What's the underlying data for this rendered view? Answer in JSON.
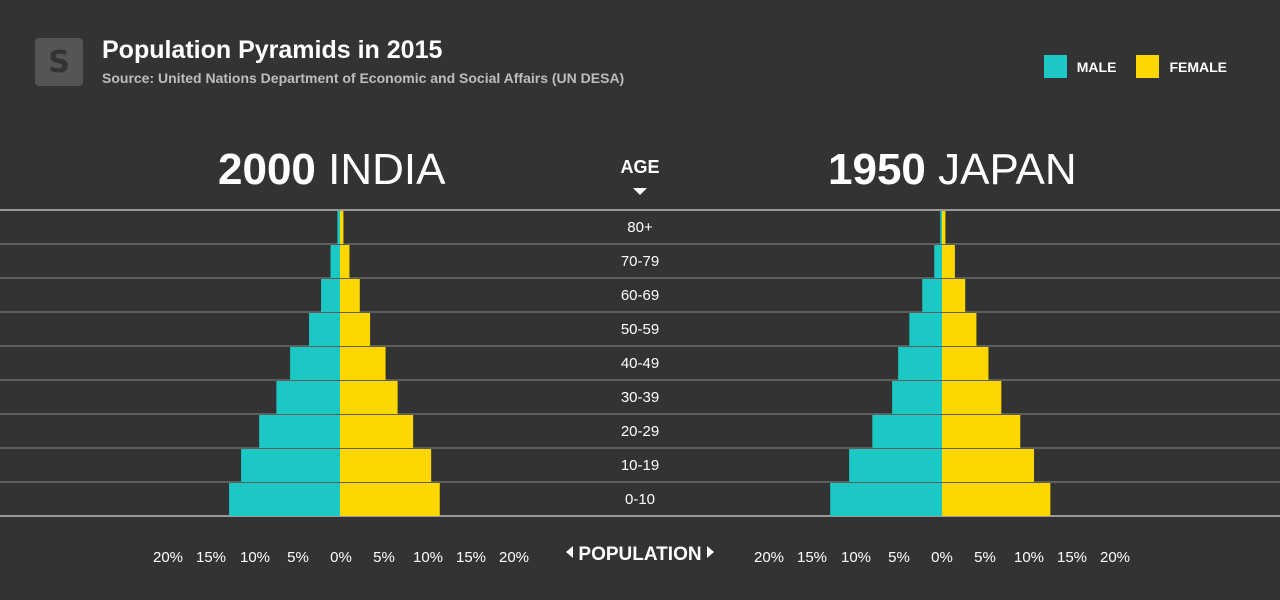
{
  "header": {
    "logo_letter": "S",
    "title": "Population Pyramids in 2015",
    "subtitle": "Source: United Nations Department of Economic and Social Affairs (UN DESA)"
  },
  "legend": {
    "male_label": "MALE",
    "female_label": "FEMALE"
  },
  "colors": {
    "male": "#1cc8c4",
    "female": "#ffd700",
    "background": "#333333",
    "grid": "#888888"
  },
  "age_header": "AGE",
  "population_label": "POPULATION",
  "chart_data": [
    {
      "type": "bar",
      "year": "2000",
      "country": "INDIA",
      "categories": [
        "80+",
        "70-79",
        "60-69",
        "50-59",
        "40-49",
        "30-39",
        "20-29",
        "10-19",
        "0-10"
      ],
      "series": [
        {
          "name": "MALE",
          "values": [
            0.3,
            1.1,
            2.2,
            3.6,
            5.8,
            7.4,
            9.4,
            11.5,
            12.9
          ]
        },
        {
          "name": "FEMALE",
          "values": [
            0.4,
            1.1,
            2.3,
            3.5,
            5.3,
            6.7,
            8.5,
            10.6,
            11.6
          ]
        }
      ],
      "xticks": [
        "20%",
        "15%",
        "10%",
        "5%",
        "0%",
        "5%",
        "10%",
        "15%",
        "20%"
      ],
      "xlim": [
        -20,
        20
      ]
    },
    {
      "type": "bar",
      "year": "1950",
      "country": "JAPAN",
      "categories": [
        "80+",
        "70-79",
        "60-69",
        "50-59",
        "40-49",
        "30-39",
        "20-29",
        "10-19",
        "0-10"
      ],
      "series": [
        {
          "name": "MALE",
          "values": [
            0.2,
            0.9,
            2.3,
            3.8,
            5.1,
            5.8,
            8.1,
            10.8,
            13.0
          ]
        },
        {
          "name": "FEMALE",
          "values": [
            0.4,
            1.5,
            2.7,
            4.0,
            5.4,
            6.9,
            9.1,
            10.7,
            12.6
          ]
        }
      ],
      "xticks": [
        "20%",
        "15%",
        "10%",
        "5%",
        "0%",
        "5%",
        "10%",
        "15%",
        "20%"
      ],
      "xlim": [
        -20,
        20
      ]
    }
  ]
}
